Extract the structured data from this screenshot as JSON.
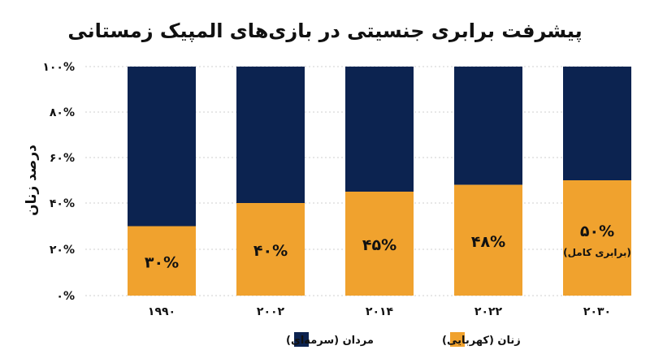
{
  "chart_data": {
    "type": "bar",
    "stacked": true,
    "title": "پیشرفت برابری جنسیتی در بازی‌های المپیک زمستانی",
    "ylabel": "درصد زنان",
    "xlabel": "",
    "categories": [
      "۱۹۹۰",
      "۲۰۰۲",
      "۲۰۱۴",
      "۲۰۲۲",
      "۲۰۳۰"
    ],
    "series": [
      {
        "name": "زنان (کهربایی)",
        "values": [
          30,
          40,
          45,
          48,
          50
        ],
        "color": "#F0A22E"
      },
      {
        "name": "مردان (سرمه‌ای)",
        "values": [
          70,
          60,
          55,
          52,
          50
        ],
        "color": "#0C2350"
      }
    ],
    "data_labels": [
      "۳۰%",
      "۴۰%",
      "۴۵%",
      "۴۸%",
      "۵۰%"
    ],
    "data_sublabels": [
      "",
      "",
      "",
      "",
      "(برابری کامل)"
    ],
    "yticks": [
      {
        "value": 0,
        "label": "۰%"
      },
      {
        "value": 20,
        "label": "۲۰%"
      },
      {
        "value": 40,
        "label": "۴۰%"
      },
      {
        "value": 60,
        "label": "۶۰%"
      },
      {
        "value": 80,
        "label": "۸۰%"
      },
      {
        "value": 100,
        "label": "۱۰۰%"
      }
    ],
    "ylim": [
      0,
      100
    ],
    "grid": true,
    "legend_position": "bottom-center"
  }
}
